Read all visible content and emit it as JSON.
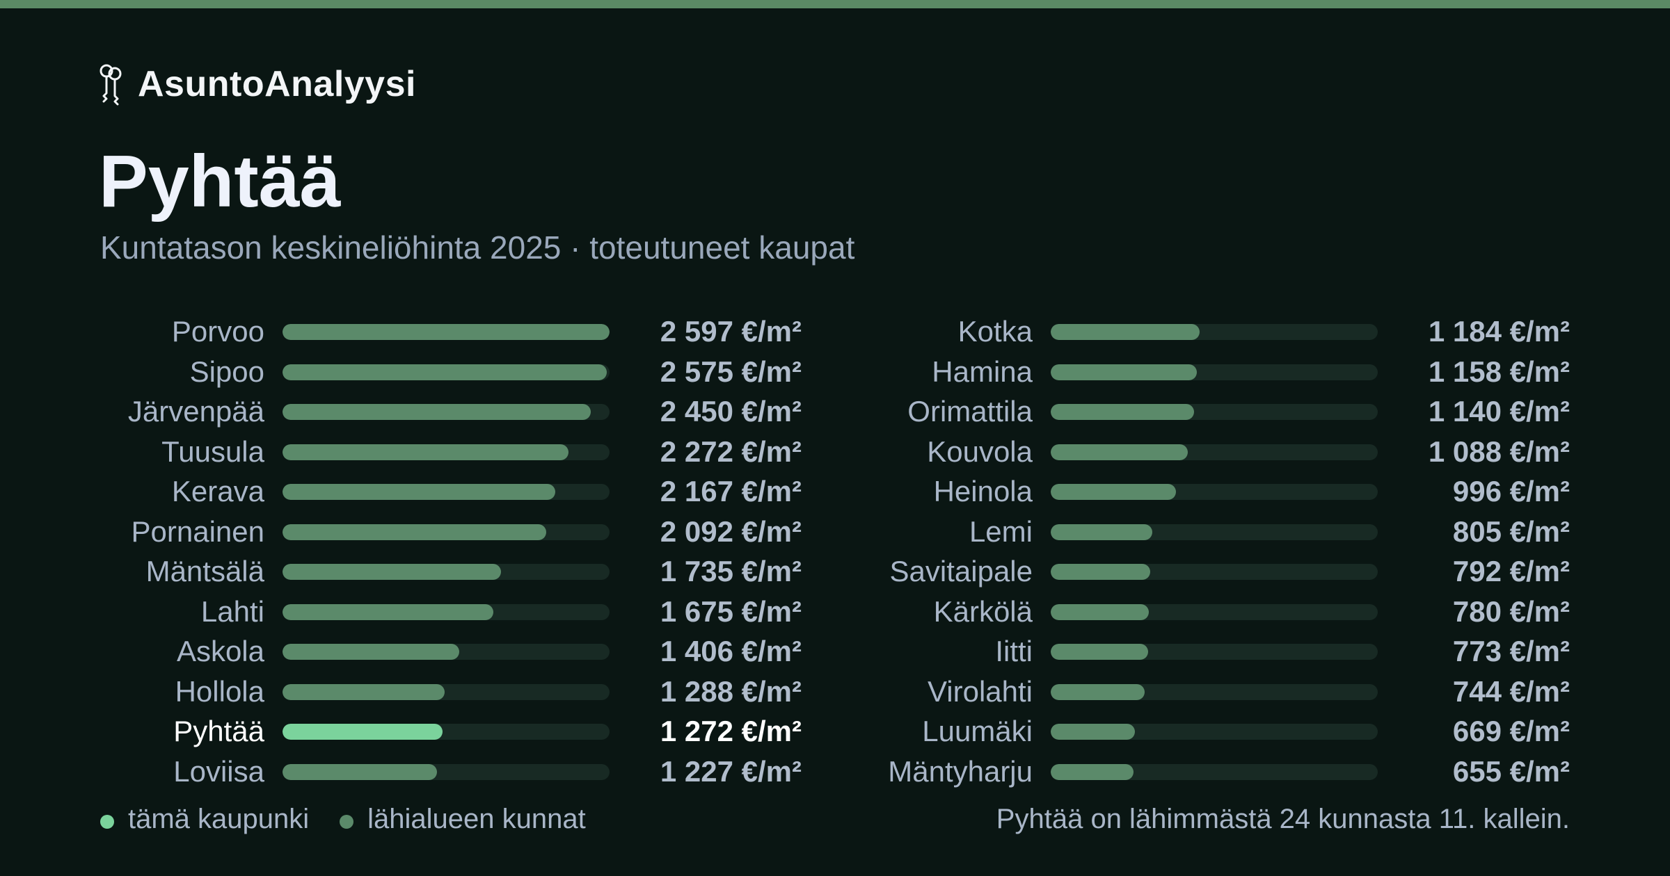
{
  "brand": {
    "name": "AsuntoAnalyysi",
    "icon": "keys-icon"
  },
  "page_title": "Pyhtää",
  "subtitle": "Kuntatason keskineliöhinta 2025 · toteutuneet kaupat",
  "colors": {
    "accent": "#7bd39c",
    "bar": "#5b8a6a",
    "track": "#182a24",
    "background": "#0a1613",
    "top_stripe": "#5b8a65"
  },
  "chart_data": {
    "type": "bar",
    "orientation": "horizontal",
    "unit": "€/m²",
    "highlight": "Pyhtää",
    "xlim": [
      0,
      2597
    ],
    "categories": [
      "Porvoo",
      "Sipoo",
      "Järvenpää",
      "Tuusula",
      "Kerava",
      "Pornainen",
      "Mäntsälä",
      "Lahti",
      "Askola",
      "Hollola",
      "Pyhtää",
      "Loviisa",
      "Kotka",
      "Hamina",
      "Orimattila",
      "Kouvola",
      "Heinola",
      "Lemi",
      "Savitaipale",
      "Kärkölä",
      "Iitti",
      "Virolahti",
      "Luumäki",
      "Mäntyharju"
    ],
    "values": [
      2597,
      2575,
      2450,
      2272,
      2167,
      2092,
      1735,
      1675,
      1406,
      1288,
      1272,
      1227,
      1184,
      1158,
      1140,
      1088,
      996,
      805,
      792,
      780,
      773,
      744,
      669,
      655
    ],
    "value_labels": [
      "2 597 €/m²",
      "2 575 €/m²",
      "2 450 €/m²",
      "2 272 €/m²",
      "2 167 €/m²",
      "2 092 €/m²",
      "1 735 €/m²",
      "1 675 €/m²",
      "1 406 €/m²",
      "1 288 €/m²",
      "1 272 €/m²",
      "1 227 €/m²",
      "1 184 €/m²",
      "1 158 €/m²",
      "1 140 €/m²",
      "1 088 €/m²",
      "996 €/m²",
      "805 €/m²",
      "792 €/m²",
      "780 €/m²",
      "773 €/m²",
      "744 €/m²",
      "669 €/m²",
      "655 €/m²"
    ]
  },
  "legend": {
    "this_city": "tämä kaupunki",
    "nearby": "lähialueen kunnat"
  },
  "rank_note": "Pyhtää on lähimmästä 24 kunnasta 11. kallein."
}
